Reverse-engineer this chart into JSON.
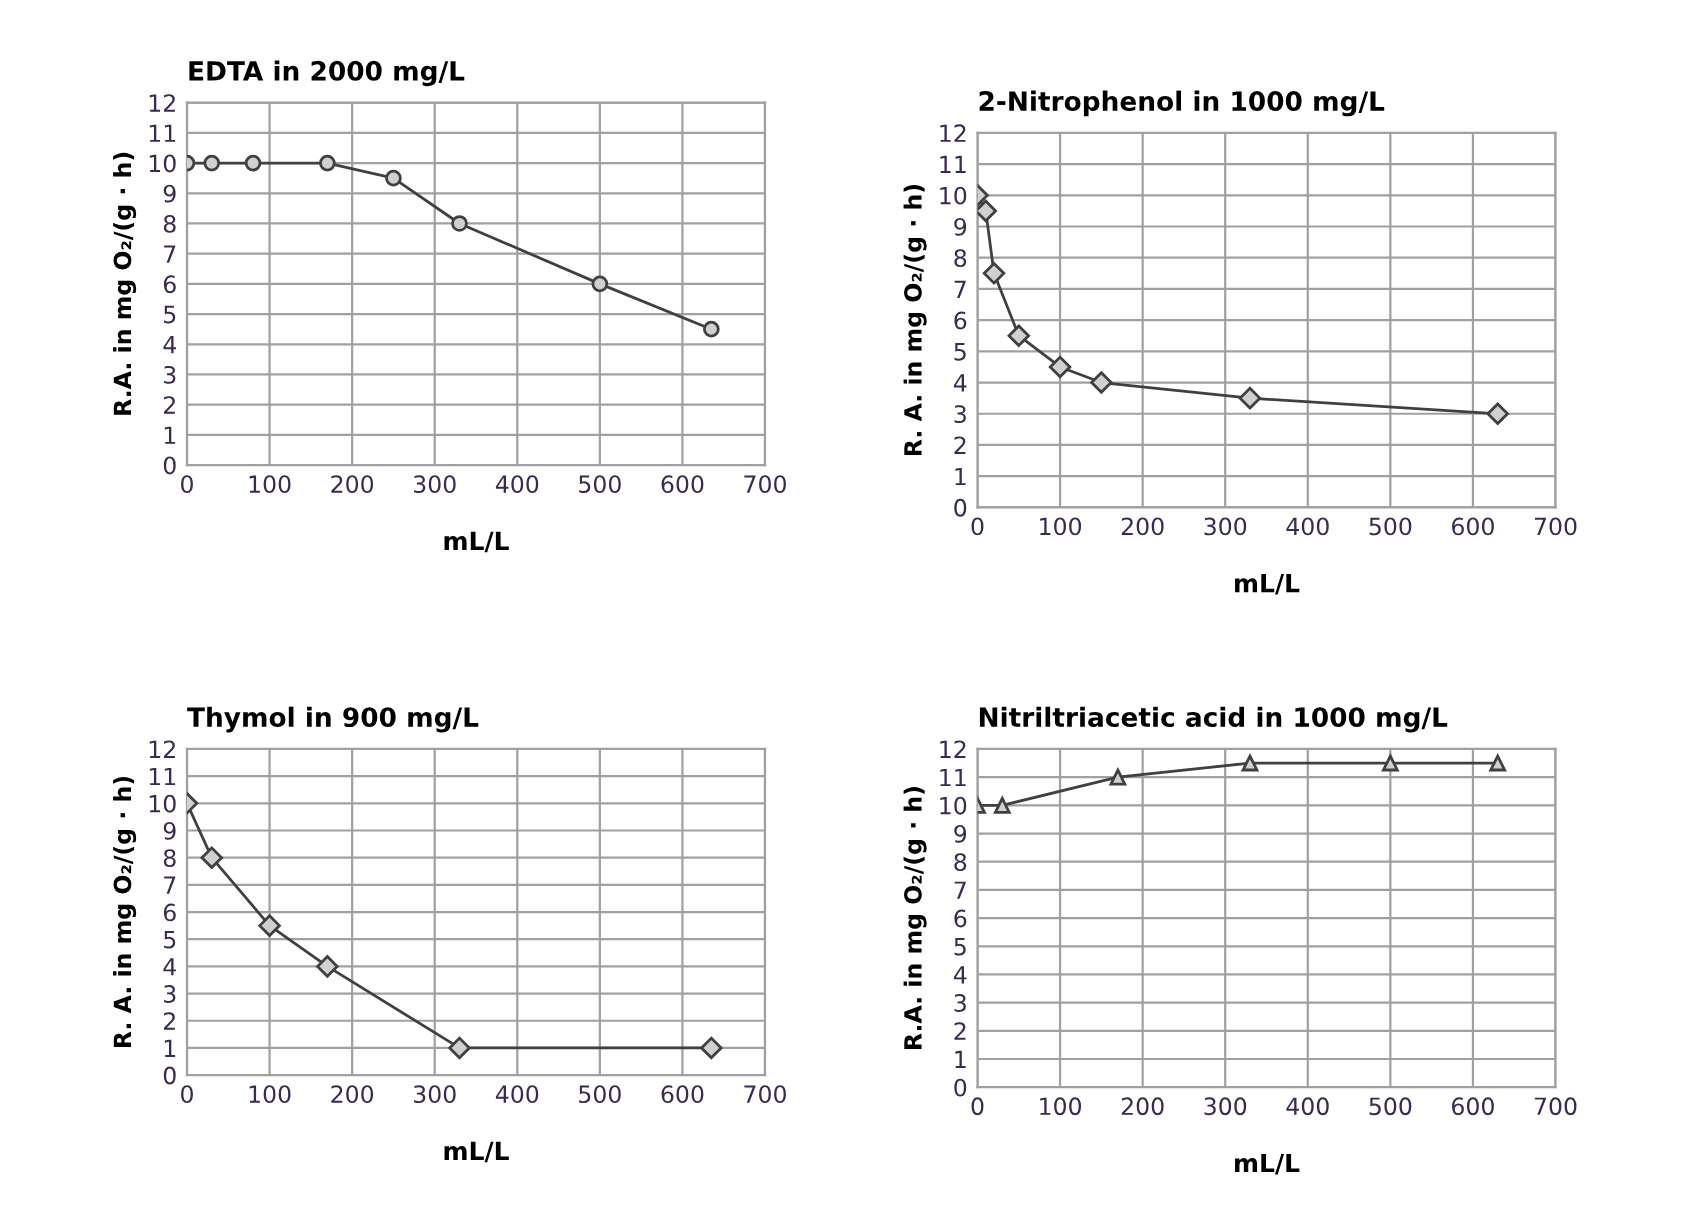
{
  "chart_data": [
    {
      "type": "line",
      "title": "EDTA in 2000 mg/L",
      "xlabel": "mL/L",
      "ylabel": "R.A. in mg O₂/(g · h)",
      "marker": "circle",
      "grid": true,
      "xlim": [
        0,
        700
      ],
      "xticks": [
        0,
        100,
        200,
        300,
        400,
        500,
        600,
        700
      ],
      "ylim": [
        0,
        12
      ],
      "yticks": [
        0,
        1,
        2,
        3,
        4,
        5,
        6,
        7,
        8,
        9,
        10,
        11,
        12
      ],
      "series": [
        {
          "color": "#404040",
          "x": [
            0,
            30,
            80,
            170,
            250,
            330,
            500,
            635
          ],
          "values": [
            10,
            10,
            10,
            10,
            9.5,
            8,
            6,
            4.5
          ]
        }
      ]
    },
    {
      "type": "line",
      "title": "2-Nitrophenol in 1000 mg/L",
      "xlabel": "mL/L",
      "ylabel": "R. A. in mg O₂/(g · h)",
      "marker": "diamond",
      "grid": true,
      "xlim": [
        0,
        700
      ],
      "xticks": [
        0,
        100,
        200,
        300,
        400,
        500,
        600,
        700
      ],
      "ylim": [
        0,
        12
      ],
      "yticks": [
        0,
        1,
        2,
        3,
        4,
        5,
        6,
        7,
        8,
        9,
        10,
        11,
        12
      ],
      "series": [
        {
          "color": "#404040",
          "x": [
            0,
            10,
            20,
            50,
            100,
            150,
            330,
            630
          ],
          "values": [
            10,
            9.5,
            7.5,
            5.5,
            4.5,
            4,
            3.5,
            3
          ]
        }
      ]
    },
    {
      "type": "line",
      "title": "Thymol in 900 mg/L",
      "xlabel": "mL/L",
      "ylabel": "R. A. in mg O₂/(g · h)",
      "marker": "diamond",
      "grid": true,
      "xlim": [
        0,
        700
      ],
      "xticks": [
        0,
        100,
        200,
        300,
        400,
        500,
        600,
        700
      ],
      "ylim": [
        0,
        12
      ],
      "yticks": [
        0,
        1,
        2,
        3,
        4,
        5,
        6,
        7,
        8,
        9,
        10,
        11,
        12
      ],
      "series": [
        {
          "color": "#404040",
          "x": [
            0,
            30,
            100,
            170,
            330,
            635
          ],
          "values": [
            10,
            8,
            5.5,
            4,
            1,
            1
          ]
        }
      ]
    },
    {
      "type": "line",
      "title": "Nitriltriacetic acid in 1000 mg/L",
      "xlabel": "mL/L",
      "ylabel": "R.A. in mg O₂/(g · h)",
      "marker": "triangle",
      "grid": true,
      "xlim": [
        0,
        700
      ],
      "xticks": [
        0,
        100,
        200,
        300,
        400,
        500,
        600,
        700
      ],
      "ylim": [
        0,
        12
      ],
      "yticks": [
        0,
        1,
        2,
        3,
        4,
        5,
        6,
        7,
        8,
        9,
        10,
        11,
        12
      ],
      "series": [
        {
          "color": "#404040",
          "x": [
            0,
            30,
            170,
            330,
            500,
            630
          ],
          "values": [
            10,
            10,
            11,
            11.5,
            11.5,
            11.5
          ]
        }
      ]
    }
  ]
}
